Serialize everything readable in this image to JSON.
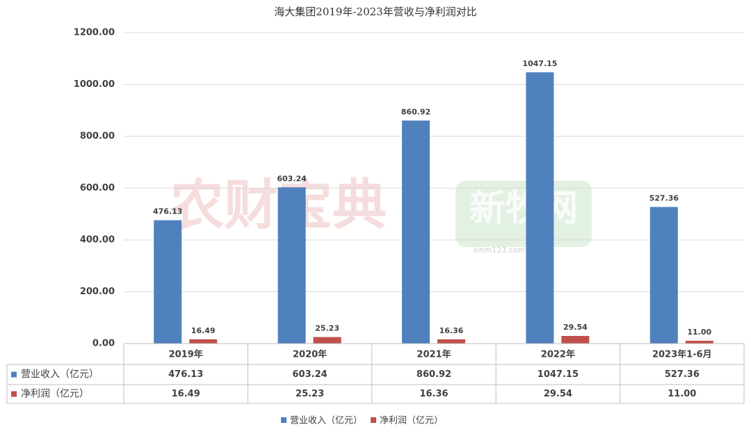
{
  "chart_data": {
    "type": "bar",
    "title": "海大集团2019年-2023年营收与净利润对比",
    "categories": [
      "2019年",
      "2020年",
      "2021年",
      "2022年",
      "2023年1-6月"
    ],
    "series": [
      {
        "name": "营业收入（亿元）",
        "color": "#4f81bd",
        "values": [
          476.13,
          603.24,
          860.92,
          1047.15,
          527.36
        ],
        "value_labels": [
          "476.13",
          "603.24",
          "860.92",
          "1047.15",
          "527.36"
        ]
      },
      {
        "name": "净利润（亿元）",
        "color": "#c0504d",
        "values": [
          16.49,
          25.23,
          16.36,
          29.54,
          11.0
        ],
        "value_labels": [
          "16.49",
          "25.23",
          "16.36",
          "29.54",
          "11.00"
        ]
      }
    ],
    "ylim": [
      0,
      1200
    ],
    "yticks": [
      {
        "value": 0,
        "label": "0.00"
      },
      {
        "value": 200,
        "label": "200.00"
      },
      {
        "value": 400,
        "label": "400.00"
      },
      {
        "value": 600,
        "label": "600.00"
      },
      {
        "value": 800,
        "label": "800.00"
      },
      {
        "value": 1000,
        "label": "1000.00"
      },
      {
        "value": 1200,
        "label": "1200.00"
      }
    ],
    "grid": true,
    "legend": "bottom",
    "watermarks": [
      "农财宝典",
      "新牧网",
      "sinm123.com"
    ]
  }
}
